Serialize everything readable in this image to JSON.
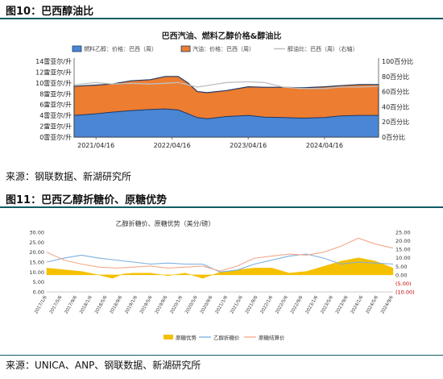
{
  "figure1": {
    "header": "图10：巴西醇油比",
    "source": "来源：钢联数据、新湖研究所"
  },
  "figure2": {
    "header": "图11：巴西乙醇折糖价、原糖优势",
    "source": "来源：UNICA、ANP、钢联数据、新湖研究所"
  },
  "colors": {
    "ethanol": "#4a86d4",
    "gasoline": "#ed7d31",
    "ratio": "#bfbfbf",
    "advantage": "#f5c000",
    "ethanol_sugar": "#7cafe0",
    "raw_sugar": "#f3a88a",
    "header_rule": "#0e5c63"
  },
  "chart_data": [
    {
      "type": "area",
      "title": "巴西汽油、燃料乙醇价格&醇油比",
      "legend": [
        "燃料乙醇：价格：巴西（周）",
        "汽油：价格：巴西（周）",
        "醇油比：巴西（周）（右轴）"
      ],
      "legend_position": "top",
      "x_ticks": [
        "2021/04/16",
        "2022/04/16",
        "2023/04/16",
        "2024/04/16"
      ],
      "y_left_ticks": [
        "0雷亚尔/升",
        "2雷亚尔/升",
        "4雷亚尔/升",
        "6雷亚尔/升",
        "8雷亚尔/升",
        "10雷亚尔/升",
        "12雷亚尔/升",
        "14雷亚尔/升"
      ],
      "y_right_ticks": [
        "0百分比",
        "20百分比",
        "40百分比",
        "60百分比",
        "80百分比",
        "100百分比"
      ],
      "ylim_left": [
        0,
        14
      ],
      "ylim_right": [
        0,
        100
      ],
      "x_range": [
        "2021/01/01",
        "2024/12/31"
      ],
      "grid": false,
      "series": [
        {
          "name": "燃料乙醇：价格：巴西（周）",
          "axis": "left",
          "x": [
            "2021/01/01",
            "2021/04/16",
            "2021/07/01",
            "2021/10/01",
            "2022/01/01",
            "2022/03/15",
            "2022/05/15",
            "2022/07/01",
            "2022/08/15",
            "2022/10/01",
            "2023/01/01",
            "2023/04/16",
            "2023/07/01",
            "2023/10/01",
            "2024/01/01",
            "2024/04/16",
            "2024/07/01",
            "2024/10/01",
            "2024/12/31"
          ],
          "values": [
            4.0,
            4.3,
            4.6,
            4.9,
            5.1,
            5.2,
            5.0,
            4.3,
            3.6,
            3.4,
            3.8,
            4.0,
            3.7,
            3.6,
            3.5,
            3.6,
            3.9,
            4.0,
            4.0
          ]
        },
        {
          "name": "汽油：价格：巴西（周）",
          "axis": "left",
          "x": [
            "2021/01/01",
            "2021/04/16",
            "2021/07/01",
            "2021/10/01",
            "2022/01/01",
            "2022/03/15",
            "2022/05/15",
            "2022/07/01",
            "2022/08/15",
            "2022/10/01",
            "2023/01/01",
            "2023/04/16",
            "2023/07/01",
            "2023/10/01",
            "2024/01/01",
            "2024/04/16",
            "2024/07/01",
            "2024/10/01",
            "2024/12/31"
          ],
          "values": [
            9.4,
            9.6,
            9.8,
            10.4,
            10.6,
            11.2,
            11.2,
            10.0,
            8.4,
            8.2,
            8.6,
            9.3,
            9.2,
            9.2,
            9.1,
            9.3,
            9.5,
            9.7,
            9.7
          ]
        },
        {
          "name": "醇油比：巴西（周）（右轴）",
          "axis": "right",
          "x": [
            "2021/01/01",
            "2021/04/16",
            "2021/07/01",
            "2021/10/01",
            "2022/01/01",
            "2022/03/15",
            "2022/05/15",
            "2022/07/01",
            "2022/08/15",
            "2022/10/01",
            "2023/01/01",
            "2023/04/16",
            "2023/07/01",
            "2023/10/01",
            "2024/01/01",
            "2024/04/16",
            "2024/07/01",
            "2024/10/01",
            "2024/12/31"
          ],
          "values": [
            69,
            72,
            70,
            71,
            70,
            71,
            72,
            69,
            66,
            68,
            72,
            73,
            72,
            66,
            64,
            64,
            66,
            66,
            67
          ]
        }
      ]
    },
    {
      "type": "line",
      "title": "乙醇折糖价、原糖优势（美分/磅）",
      "legend": [
        "原糖优势",
        "乙醇折糖价",
        "原糖结算价"
      ],
      "legend_position": "bottom",
      "y_left_ticks": [
        "0.00",
        "5.00",
        "10.00",
        "15.00",
        "20.00",
        "25.00",
        "30.00"
      ],
      "y_right_ticks": [
        "(10.00)",
        "(5.00)",
        "0.00",
        "5.00",
        "10.00",
        "15.00",
        "20.00",
        "25.00"
      ],
      "ylim_left": [
        0,
        30
      ],
      "ylim_right": [
        -10,
        25
      ],
      "x_ticks": [
        "2017/1/6",
        "2017/5/6",
        "2017/9/6",
        "2018/1/6",
        "2018/5/6",
        "2018/9/6",
        "2019/1/6",
        "2019/5/6",
        "2019/9/6",
        "2020/1/6",
        "2020/5/6",
        "2020/9/6",
        "2021/1/6",
        "2021/5/6",
        "2021/9/6",
        "2022/1/6",
        "2022/5/6",
        "2022/9/6",
        "2023/1/6",
        "2023/5/6",
        "2023/9/6",
        "2024/1/6",
        "2024/5/6",
        "2024/9/6"
      ],
      "grid": false,
      "series": [
        {
          "name": "原糖优势",
          "axis": "right",
          "x": [
            0,
            0.05,
            0.1,
            0.15,
            0.19,
            0.22,
            0.25,
            0.3,
            0.35,
            0.4,
            0.45,
            0.5,
            0.55,
            0.6,
            0.65,
            0.7,
            0.75,
            0.8,
            0.85,
            0.9,
            0.95,
            1.0
          ],
          "values": [
            4,
            3,
            2,
            0,
            -2,
            0.5,
            1,
            1,
            -0.5,
            1,
            -2,
            1.5,
            3,
            4,
            4,
            1,
            2,
            5,
            8,
            10,
            8,
            4
          ]
        },
        {
          "name": "乙醇折糖价",
          "axis": "left",
          "x": [
            0,
            0.05,
            0.1,
            0.15,
            0.2,
            0.25,
            0.3,
            0.35,
            0.4,
            0.45,
            0.5,
            0.55,
            0.6,
            0.65,
            0.7,
            0.75,
            0.8,
            0.85,
            0.9,
            0.95,
            1.0
          ],
          "values": [
            15,
            17,
            18.5,
            17,
            16,
            15,
            14,
            14.5,
            14,
            14,
            10,
            11,
            14,
            16,
            18,
            19,
            17,
            14,
            15,
            14.5,
            14
          ]
        },
        {
          "name": "原糖结算价",
          "axis": "left",
          "x": [
            0,
            0.05,
            0.1,
            0.15,
            0.2,
            0.25,
            0.3,
            0.35,
            0.4,
            0.45,
            0.5,
            0.55,
            0.6,
            0.65,
            0.7,
            0.75,
            0.8,
            0.85,
            0.9,
            0.95,
            1.0
          ],
          "values": [
            20,
            16,
            14,
            12.5,
            12,
            12.5,
            13,
            12,
            12.5,
            13,
            10.5,
            13,
            17,
            18,
            19,
            18.5,
            20,
            23,
            27,
            24,
            22
          ]
        }
      ]
    }
  ]
}
